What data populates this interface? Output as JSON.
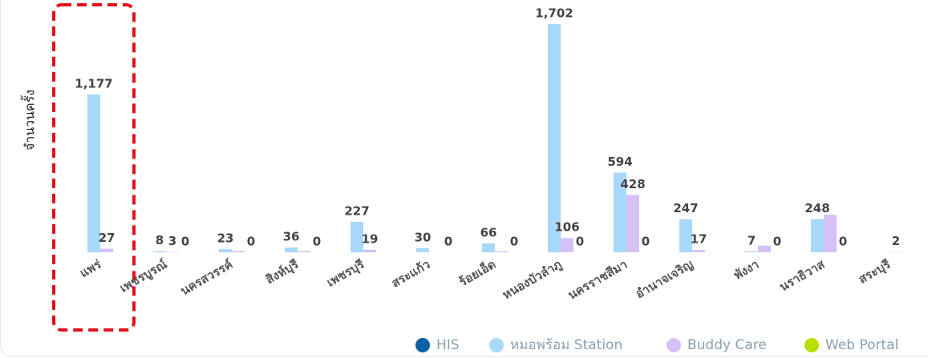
{
  "chart_data": {
    "type": "bar",
    "y_label": "จำนวนครั้ง",
    "categories": [
      "แพร่",
      "เพชรบูรณ์",
      "นครสวรรค์",
      "สิงห์บุรี",
      "เพชรบุรี",
      "สระแก้ว",
      "ร้อยเอ็ด",
      "หนองบัวลำภู",
      "นครราชสีมา",
      "อำนาจเจริญ",
      "พังงา",
      "นราธิวาส",
      "สระบุรี"
    ],
    "series": [
      {
        "name": "HIS",
        "color": "#0b5fa5",
        "values": [
          null,
          null,
          null,
          null,
          null,
          null,
          null,
          null,
          null,
          null,
          null,
          null,
          null
        ]
      },
      {
        "name": "หมอพร้อม Station",
        "color": "#a8d8fb",
        "values": [
          1177,
          8,
          23,
          36,
          227,
          30,
          66,
          1702,
          594,
          247,
          7,
          248,
          null
        ],
        "value_labels": [
          "1,177",
          "8",
          "23",
          "36",
          "227",
          "30",
          "66",
          "1,702",
          "594",
          "247",
          "7",
          "248",
          null
        ]
      },
      {
        "name": "Buddy Care",
        "color": "#d5c1f5",
        "values": [
          27,
          3,
          10,
          10,
          19,
          null,
          8,
          106,
          428,
          17,
          50,
          280,
          2
        ],
        "value_labels": [
          "27",
          "3",
          null,
          null,
          "19",
          null,
          null,
          "106",
          "428",
          "17",
          null,
          null,
          "2"
        ]
      },
      {
        "name": "Web Portal",
        "color": "#b7e000",
        "values": [
          null,
          0,
          0,
          0,
          null,
          0,
          0,
          0,
          0,
          null,
          0,
          0,
          null
        ],
        "value_labels": [
          null,
          "0",
          "0",
          "0",
          null,
          "0",
          "0",
          "0",
          "0",
          null,
          "0",
          "0",
          null
        ]
      }
    ],
    "ylim": [
      0,
      1880
    ],
    "legend": "bottom"
  }
}
